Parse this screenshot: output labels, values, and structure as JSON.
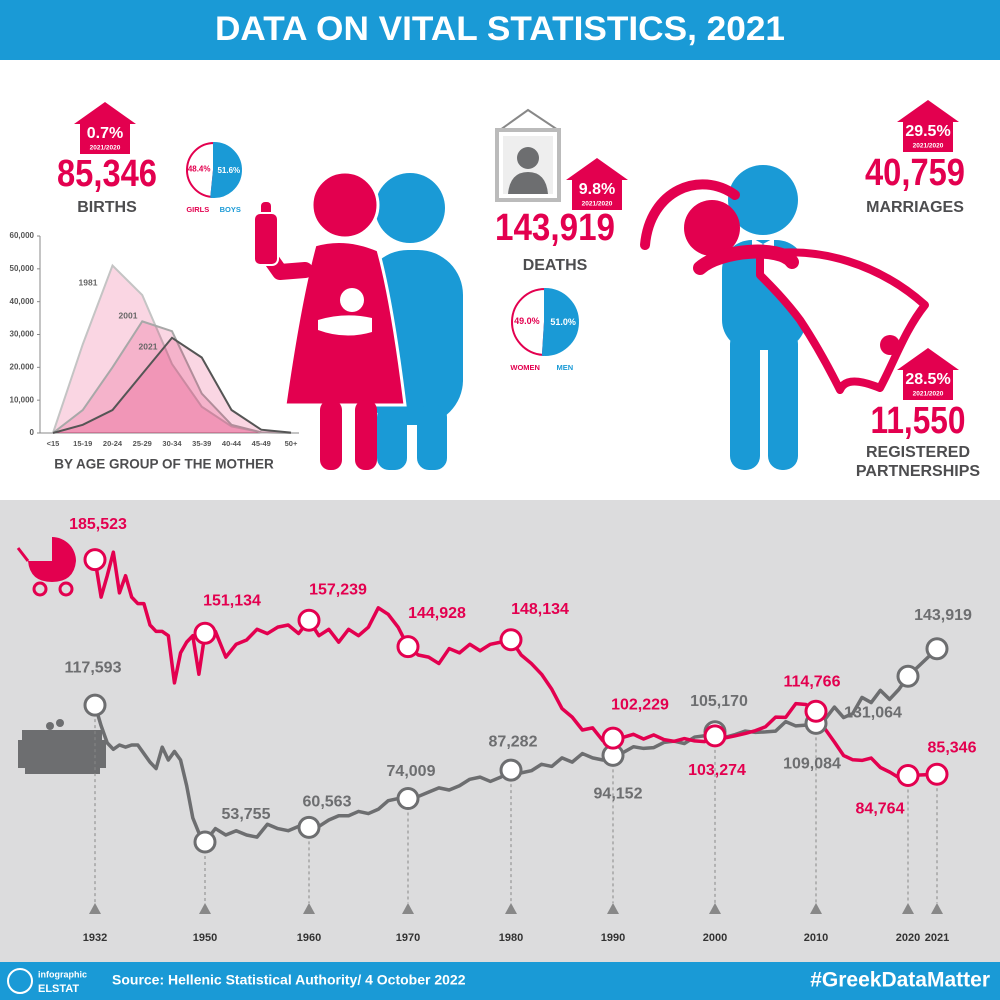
{
  "header": {
    "title": "DATA ON VITAL STATISTICS, 2021"
  },
  "births": {
    "change": "0.7%",
    "period": "2021/2020",
    "value": "85,346",
    "label": "BIRTHS"
  },
  "deaths": {
    "change": "9.8%",
    "period": "2021/2020",
    "value": "143,919",
    "label": "DEATHS"
  },
  "marriages": {
    "change": "29.5%",
    "period": "2021/2020",
    "value": "40,759",
    "label": "MARRIAGES"
  },
  "partnerships": {
    "change": "28.5%",
    "period": "2021/2020",
    "value": "11,550",
    "label": [
      "REGISTERED",
      "PARTNERSHIPS"
    ]
  },
  "chart_data": [
    {
      "type": "pie",
      "categories": [
        "GIRLS",
        "BOYS"
      ],
      "values": [
        48.4,
        51.6
      ],
      "value_labels": [
        "48.4%",
        "51.6%"
      ],
      "colors": [
        "#e3004f",
        "#1a9ad6"
      ]
    },
    {
      "type": "area",
      "x_label": "BY AGE GROUP OF THE MOTHER",
      "categories": [
        "<15",
        "15-19",
        "20-24",
        "25-29",
        "30-34",
        "35-39",
        "40-44",
        "45-49",
        "50+"
      ],
      "series": [
        {
          "name": "1981",
          "color": "#c4c4c4",
          "values": [
            0,
            27000,
            51000,
            42000,
            21000,
            8000,
            2000,
            200,
            0
          ]
        },
        {
          "name": "2001",
          "color": "#a8a8a8",
          "values": [
            0,
            7000,
            20000,
            34000,
            31000,
            12000,
            2500,
            200,
            0
          ]
        },
        {
          "name": "2021",
          "color": "#555555",
          "values": [
            0,
            2500,
            7000,
            18000,
            29000,
            23000,
            7000,
            1000,
            100
          ]
        }
      ],
      "ylim": [
        0,
        60000
      ],
      "yticks": [
        0,
        {
          "value": 10000,
          "label": "10,000"
        },
        {
          "value": 20000,
          "label": "20.000"
        },
        {
          "value": 30000,
          "label": "30,000"
        },
        {
          "value": 40000,
          "label": "40,000"
        },
        {
          "value": 50000,
          "label": "50,000"
        },
        {
          "value": 60000,
          "label": "60,000"
        }
      ]
    },
    {
      "type": "pie",
      "categories": [
        "WOMEN",
        "MEN"
      ],
      "values": [
        49.0,
        51.0
      ],
      "value_labels": [
        "49.0%",
        "51.0%"
      ],
      "colors": [
        "#e3004f",
        "#1a9ad6"
      ]
    },
    {
      "type": "line",
      "x": [
        1932,
        1933,
        1934,
        1935,
        1936,
        1937,
        1938,
        1939,
        1940,
        1941,
        1942,
        1943,
        1944,
        1945,
        1946,
        1947,
        1948,
        1949,
        1950,
        1951,
        1952,
        1953,
        1954,
        1955,
        1956,
        1957,
        1958,
        1959,
        1960,
        1961,
        1962,
        1963,
        1964,
        1965,
        1966,
        1967,
        1968,
        1969,
        1970,
        1971,
        1972,
        1973,
        1974,
        1975,
        1976,
        1977,
        1978,
        1979,
        1980,
        1981,
        1982,
        1983,
        1984,
        1985,
        1986,
        1987,
        1988,
        1989,
        1990,
        1991,
        1992,
        1993,
        1994,
        1995,
        1996,
        1997,
        1998,
        1999,
        2000,
        2001,
        2002,
        2003,
        2004,
        2005,
        2006,
        2007,
        2008,
        2009,
        2010,
        2011,
        2012,
        2013,
        2014,
        2015,
        2016,
        2017,
        2018,
        2019,
        2020,
        2021
      ],
      "series": [
        {
          "color": "#e3004f",
          "values": [
            185523,
            168000,
            178000,
            189000,
            170000,
            178000,
            168000,
            165000,
            165000,
            155000,
            152000,
            152000,
            150000,
            128000,
            142000,
            147000,
            150000,
            132000,
            151134,
            152000,
            140000,
            146000,
            148000,
            153000,
            151000,
            154000,
            155000,
            151000,
            157239,
            150000,
            153000,
            147000,
            153000,
            150000,
            154000,
            163000,
            160000,
            154000,
            144928,
            141000,
            140000,
            137000,
            144000,
            142000,
            146000,
            143000,
            146000,
            147000,
            148134,
            141000,
            137000,
            132000,
            125000,
            116000,
            112000,
            106000,
            107000,
            101000,
            102229,
            102600,
            104000,
            101800,
            103700,
            101500,
            100700,
            102000,
            100900,
            100600,
            103274,
            102300,
            103300,
            104400,
            105700,
            107500,
            112000,
            111900,
            118300,
            117900,
            114766,
            106400,
            100400,
            94100,
            92100,
            91800,
            92900,
            88500,
            86400,
            83800,
            84764,
            85346
          ],
          "value_labels": [
            "185,523",
            null,
            null,
            null,
            null,
            null,
            null,
            null,
            null,
            null,
            null,
            null,
            null,
            null,
            null,
            null,
            null,
            null,
            "151,134",
            null,
            null,
            null,
            null,
            null,
            null,
            null,
            null,
            null,
            "157,239",
            null,
            null,
            null,
            null,
            null,
            null,
            null,
            null,
            null,
            "144,928",
            null,
            null,
            null,
            null,
            null,
            null,
            null,
            null,
            null,
            "148,134",
            null,
            null,
            null,
            null,
            null,
            null,
            null,
            null,
            null,
            "102,229",
            null,
            null,
            null,
            null,
            null,
            null,
            null,
            null,
            null,
            "103,274",
            null,
            null,
            null,
            null,
            null,
            null,
            null,
            null,
            null,
            "114,766",
            null,
            null,
            null,
            null,
            null,
            null,
            null,
            null,
            null,
            "84,764",
            "85,346"
          ]
        },
        {
          "color": "#6d6e70",
          "values": [
            117593,
            108000,
            100000,
            97000,
            99000,
            98000,
            99000,
            99000,
            95000,
            91000,
            88000,
            98000,
            92000,
            96000,
            92000,
            80000,
            65000,
            58000,
            53755,
            60000,
            57000,
            59000,
            57000,
            56000,
            62000,
            60000,
            59000,
            61000,
            60563,
            61000,
            64000,
            66000,
            66000,
            68000,
            67000,
            69000,
            73000,
            74000,
            74009,
            75000,
            77000,
            79000,
            78000,
            80000,
            83000,
            84000,
            82000,
            84000,
            87282,
            86000,
            87000,
            90000,
            89000,
            93000,
            91000,
            95000,
            93000,
            92000,
            94152,
            95500,
            98200,
            97400,
            97800,
            100200,
            100800,
            99700,
            102700,
            103300,
            105170,
            102600,
            103900,
            105500,
            104900,
            105100,
            105500,
            109900,
            107900,
            108300,
            109084,
            111100,
            116700,
            111800,
            113700,
            121200,
            118800,
            124500,
            120300,
            124900,
            131064,
            143919
          ],
          "value_labels": [
            "117,593",
            null,
            null,
            null,
            null,
            null,
            null,
            null,
            null,
            null,
            null,
            null,
            null,
            null,
            null,
            null,
            null,
            null,
            "53,755",
            null,
            null,
            null,
            null,
            null,
            null,
            null,
            null,
            null,
            "60,563",
            null,
            null,
            null,
            null,
            null,
            null,
            null,
            null,
            null,
            "74,009",
            null,
            null,
            null,
            null,
            null,
            null,
            null,
            null,
            null,
            "87,282",
            null,
            null,
            null,
            null,
            null,
            null,
            null,
            null,
            null,
            "94,152",
            null,
            null,
            null,
            null,
            null,
            null,
            null,
            null,
            null,
            "105,170",
            null,
            null,
            null,
            null,
            null,
            null,
            null,
            null,
            null,
            "109,084",
            null,
            null,
            null,
            null,
            null,
            null,
            null,
            null,
            null,
            "131,064",
            "143,919"
          ]
        }
      ],
      "ylim": [
        50000,
        190000
      ],
      "xticks": [
        1932,
        1950,
        1960,
        1970,
        1980,
        1990,
        2000,
        2010,
        2020,
        2021
      ]
    }
  ],
  "footer": {
    "brand": [
      "infographic",
      "ELSTAT"
    ],
    "source": "Source: Hellenic Statistical Authority/ 4 October 2022",
    "hashtag": "#GreekDataMatter"
  }
}
